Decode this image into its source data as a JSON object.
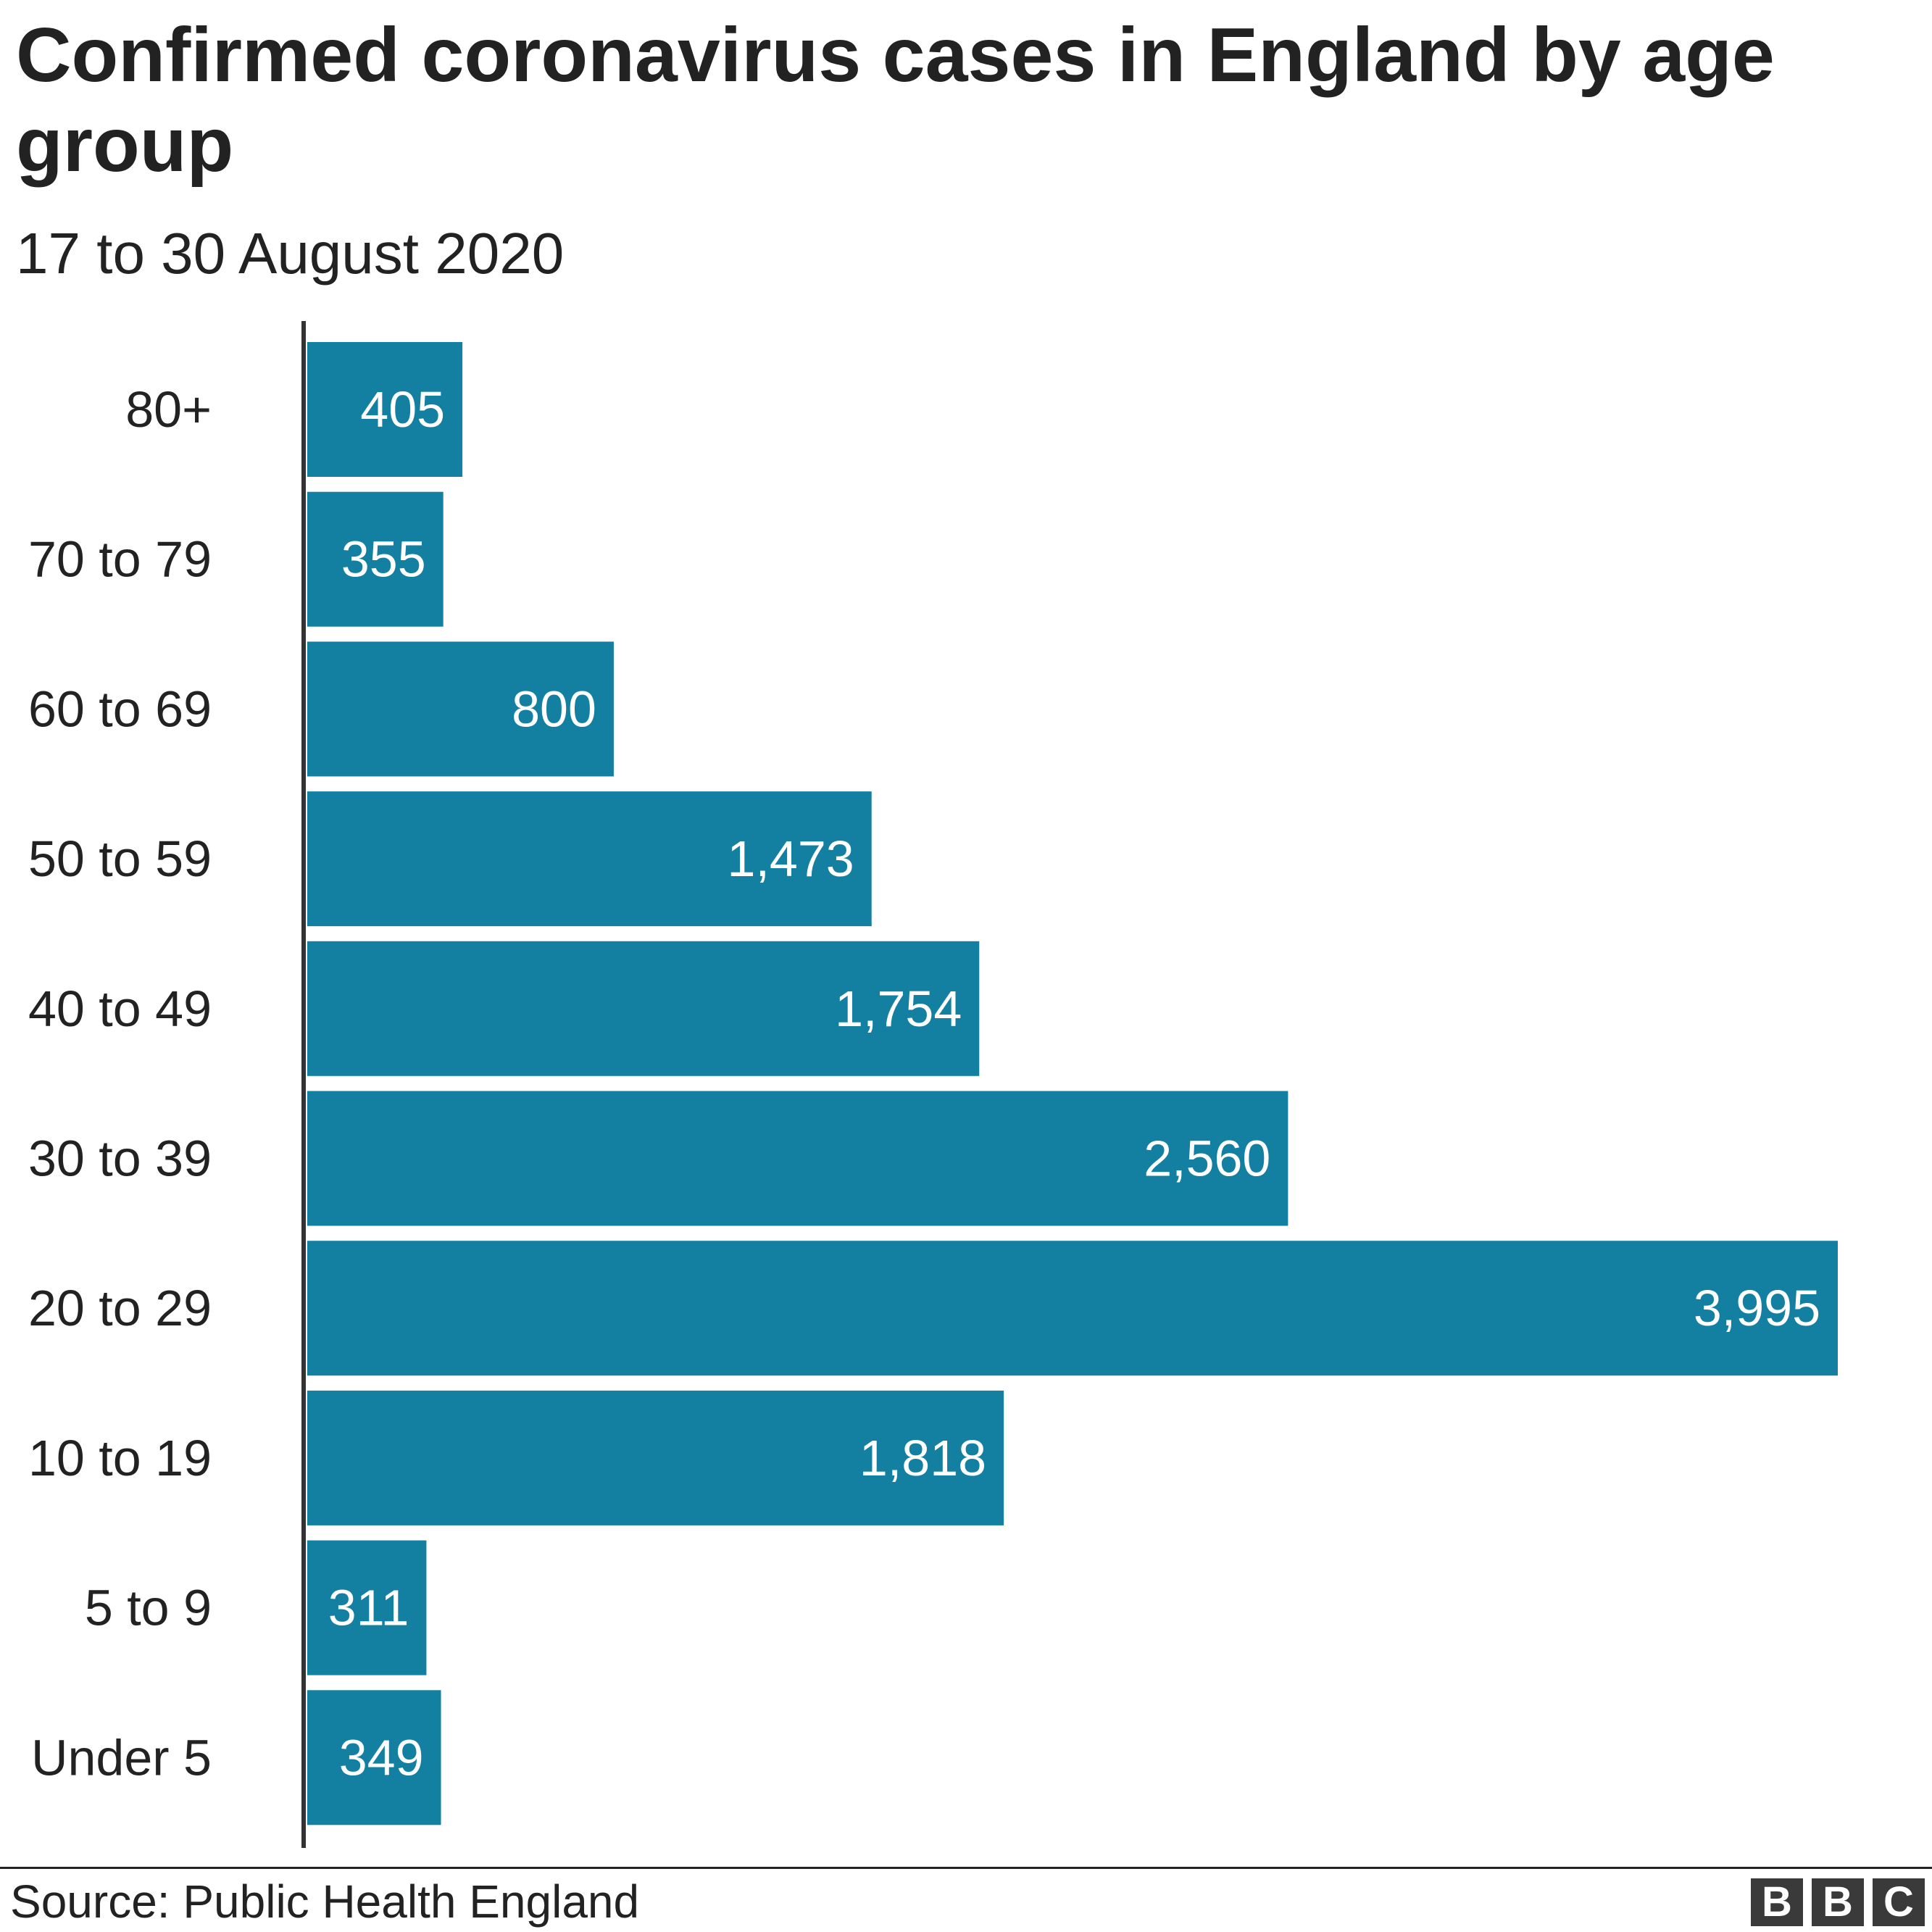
{
  "chart_data": {
    "type": "bar",
    "orientation": "horizontal",
    "title": "Confirmed coronavirus cases in England by age group",
    "subtitle": "17 to 30 August 2020",
    "categories": [
      "80+",
      "70 to 79",
      "60 to 69",
      "50 to 59",
      "40 to 49",
      "30 to 39",
      "20 to 29",
      "10 to 19",
      "5 to 9",
      "Under 5"
    ],
    "values": [
      405,
      355,
      800,
      1473,
      1754,
      2560,
      3995,
      1818,
      311,
      349
    ],
    "value_labels": [
      "405",
      "355",
      "800",
      "1,473",
      "1,754",
      "2,560",
      "3,995",
      "1,818",
      "311",
      "349"
    ],
    "xlabel": "",
    "ylabel": "",
    "xlim": [
      0,
      4000
    ],
    "grid": false,
    "legend": "none",
    "bar_color": "#1380a1"
  },
  "footer": {
    "source": "Source: Public Health England",
    "logo": [
      "B",
      "B",
      "C"
    ]
  }
}
